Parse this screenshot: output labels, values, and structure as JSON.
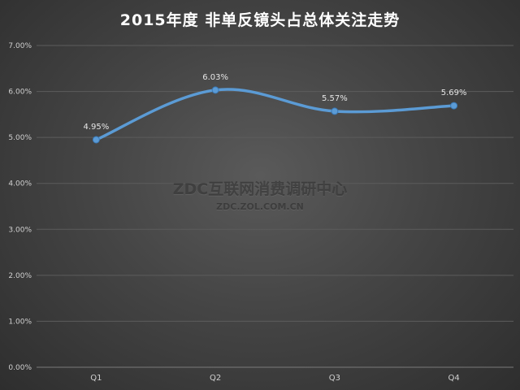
{
  "chart_data": {
    "type": "line",
    "title": "2015年度 非单反镜头占总体关注走势",
    "categories": [
      "Q1",
      "Q2",
      "Q3",
      "Q4"
    ],
    "series": [
      {
        "values": [
          4.95,
          6.03,
          5.57,
          5.69
        ],
        "labels": [
          "4.95%",
          "6.03%",
          "5.57%",
          "5.69%"
        ]
      }
    ],
    "ylim": [
      0,
      7
    ],
    "yticks": [
      "0.00%",
      "1.00%",
      "2.00%",
      "3.00%",
      "4.00%",
      "5.00%",
      "6.00%",
      "7.00%"
    ],
    "grid": true,
    "smooth": true,
    "line_color": "#5b9bd5"
  },
  "watermark": {
    "main": "ZDC互联网消费调研中心",
    "sub": "ZDC.ZOL.COM.CN"
  }
}
